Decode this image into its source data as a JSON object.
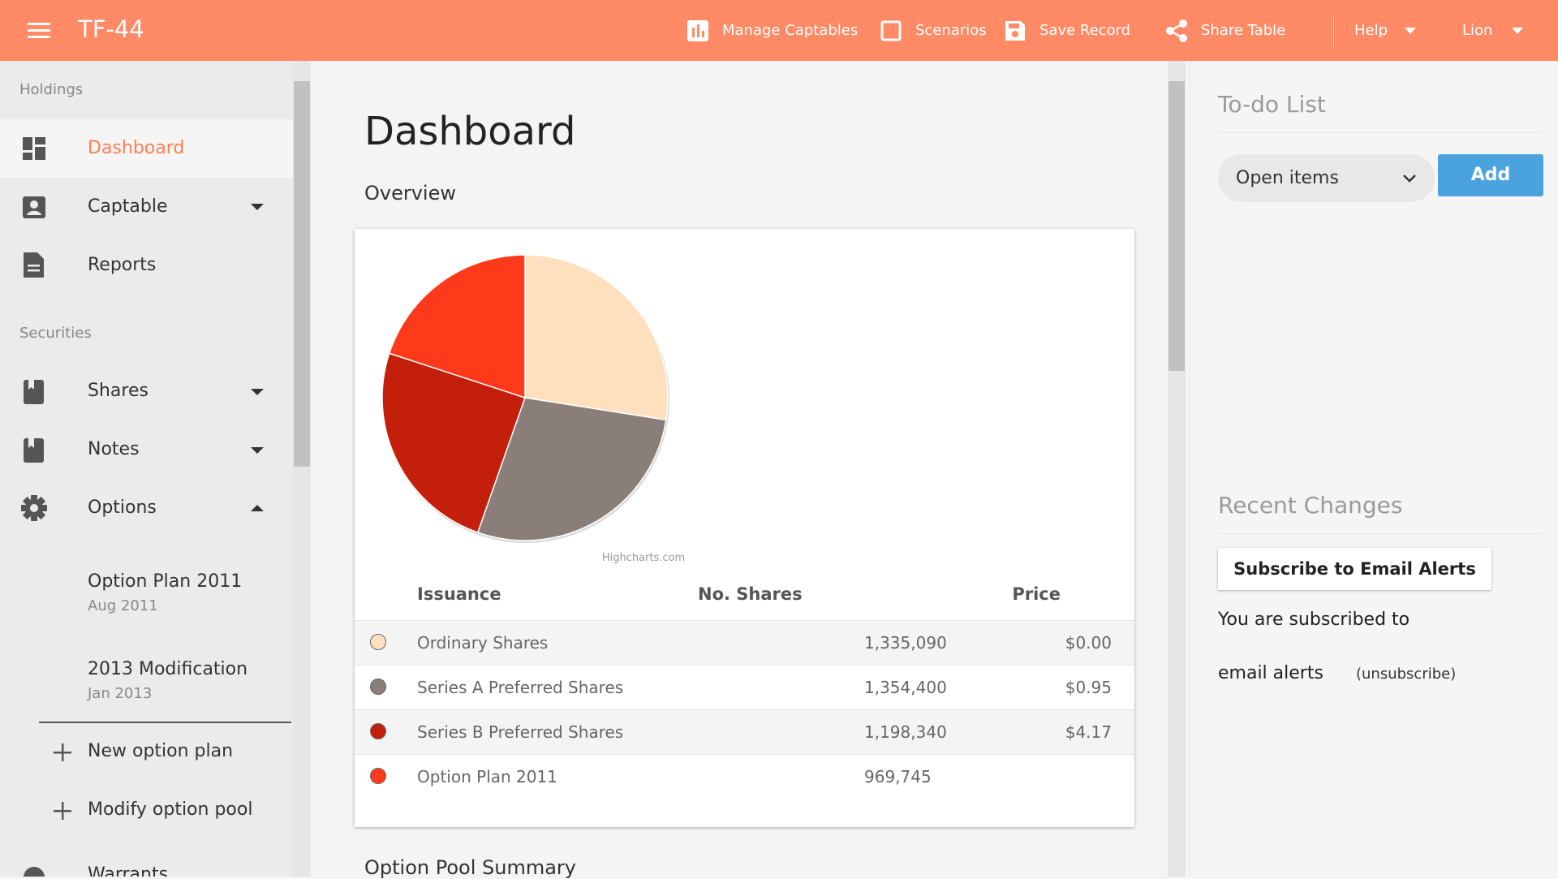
{
  "header": {
    "title": "TF-44",
    "actions": [
      "Manage Captables",
      "Scenarios",
      "Save Record",
      "Share Table"
    ],
    "menus": [
      "Help",
      "Lion"
    ]
  },
  "sidebar": {
    "holdings": "Holdings",
    "holdings_items": [
      "Dashboard",
      "Captable",
      "Reports"
    ],
    "securities": "Securities",
    "securities_items": [
      "Shares",
      "Notes",
      "Options"
    ],
    "option_plans": [
      {
        "name": "Option Plan 2011",
        "date": "Aug 2011"
      },
      {
        "name": "2013 Modification",
        "date": "Jan 2013"
      }
    ],
    "option_actions": [
      "New option plan",
      "Modify option pool"
    ],
    "next_item": "Warrants"
  },
  "main": {
    "title": "Dashboard",
    "overview": "Overview",
    "next_section": "Option Pool Summary"
  },
  "chart_data": {
    "type": "pie",
    "credit": "Highcharts.com",
    "columns": [
      "Issuance",
      "No. Shares",
      "Price"
    ],
    "categories": [
      "Ordinary Shares",
      "Series A Preferred Shares",
      "Series B Preferred Shares",
      "Option Plan 2011"
    ],
    "values": [
      1335090,
      1354400,
      1198340,
      969745
    ],
    "value_labels": [
      "1,335,090",
      "1,354,400",
      "1,198,340",
      "969,745"
    ],
    "prices": [
      "$0.00",
      "$0.95",
      "$4.17",
      null
    ],
    "colors": [
      "#fee0bf",
      "#8a7f78",
      "#c41f0b",
      "#ff3a1a"
    ]
  },
  "todo": {
    "title": "To-do List",
    "filter": "Open items",
    "button": "Add"
  },
  "recent": {
    "title": "Recent Changes",
    "button": "Subscribe to Email Alerts",
    "status": "You are subscribed to",
    "status_end": "email alerts",
    "unsubscribe": "(unsubscribe)"
  }
}
